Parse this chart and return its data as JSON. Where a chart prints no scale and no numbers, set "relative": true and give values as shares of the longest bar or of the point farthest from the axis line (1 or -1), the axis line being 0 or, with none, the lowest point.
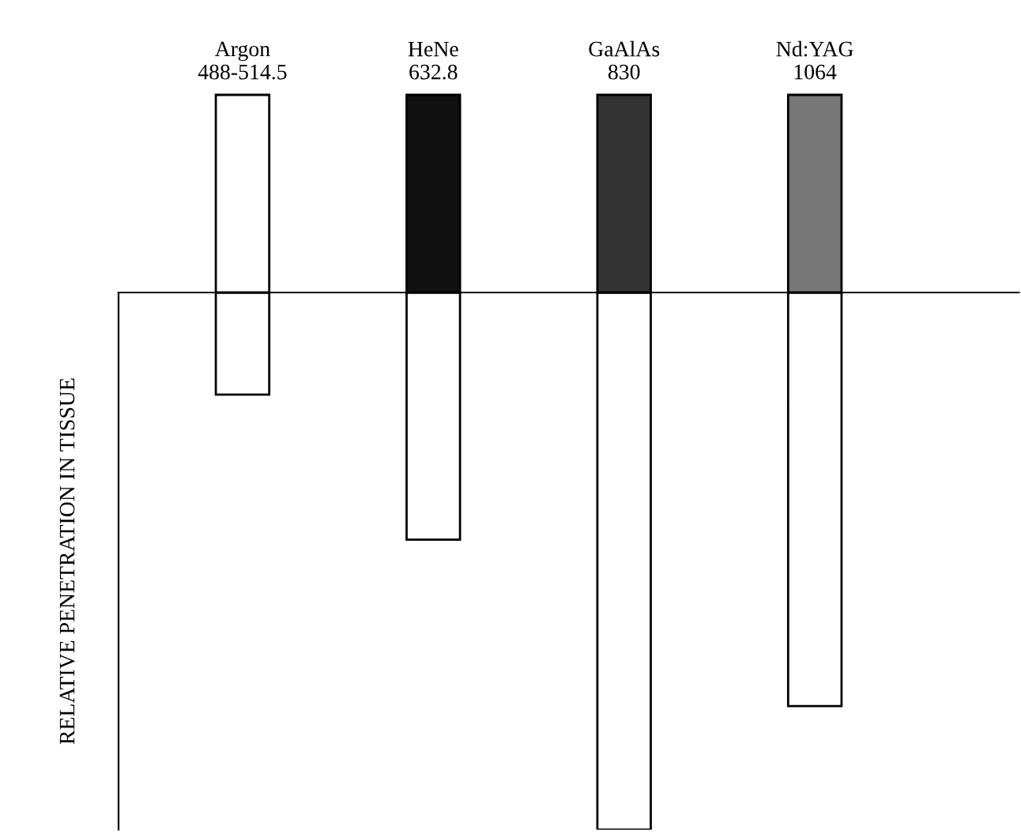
{
  "chart_data": {
    "type": "bar",
    "relative": true,
    "ylabel": "RELATIVE PENETRATION IN TISSUE",
    "categories": [
      "Argon\n488-514.5",
      "HeNe\n632.8",
      "GaAlAs\n830",
      "Nd:YAG\n1064"
    ],
    "values": [
      -0.19,
      -0.46,
      -1,
      -0.77
    ],
    "color": "#ffffff",
    "grid": false,
    "legend": false
  }
}
